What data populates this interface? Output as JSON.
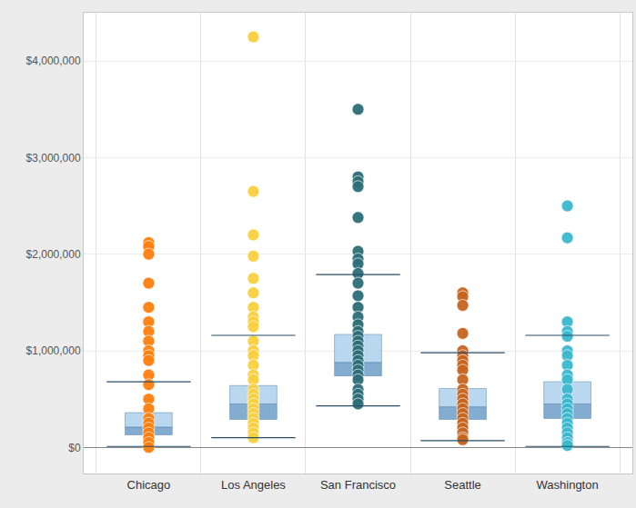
{
  "chart_data": {
    "type": "box",
    "categories": [
      "Chicago",
      "Los Angeles",
      "San Francisco",
      "Seattle",
      "Washington"
    ],
    "colors": [
      "#ff7f0e",
      "#f9d03c",
      "#2d6e78",
      "#c8641e",
      "#3cb8cf"
    ],
    "points": [
      [
        2120000,
        2080000,
        2000000,
        1700000,
        1450000,
        1300000,
        1200000,
        1100000,
        1000000,
        950000,
        900000,
        750000,
        650000,
        500000,
        400000,
        300000,
        250000,
        200000,
        150000,
        100000,
        50000,
        0
      ],
      [
        4250000,
        2650000,
        2200000,
        1980000,
        1750000,
        1600000,
        1450000,
        1350000,
        1300000,
        1250000,
        1100000,
        1000000,
        950000,
        850000,
        750000,
        700000,
        600000,
        550000,
        500000,
        450000,
        400000,
        350000,
        300000,
        250000,
        200000,
        150000,
        100000
      ],
      [
        3500000,
        2800000,
        2750000,
        2700000,
        2380000,
        2030000,
        1950000,
        1900000,
        1800000,
        1700000,
        1570000,
        1450000,
        1350000,
        1270000,
        1200000,
        1150000,
        1100000,
        1050000,
        1000000,
        950000,
        900000,
        850000,
        800000,
        750000,
        700000,
        600000,
        550000,
        500000,
        450000
      ],
      [
        1600000,
        1560000,
        1470000,
        1180000,
        1000000,
        950000,
        900000,
        850000,
        800000,
        700000,
        600000,
        550000,
        500000,
        450000,
        400000,
        350000,
        300000,
        250000,
        200000,
        150000,
        100000,
        80000
      ],
      [
        2500000,
        2170000,
        1300000,
        1200000,
        1150000,
        1000000,
        950000,
        850000,
        750000,
        700000,
        600000,
        500000,
        450000,
        400000,
        350000,
        300000,
        250000,
        200000,
        150000,
        100000,
        50000,
        20000
      ]
    ],
    "q1": [
      130000,
      290000,
      740000,
      290000,
      300000
    ],
    "median": [
      210000,
      450000,
      880000,
      420000,
      450000
    ],
    "q3": [
      360000,
      640000,
      1170000,
      610000,
      680000
    ],
    "whisker_low": [
      10000,
      100000,
      430000,
      70000,
      10000
    ],
    "whisker_high": [
      680000,
      1160000,
      1790000,
      980000,
      1160000
    ],
    "ylim": [
      -270000,
      4500000
    ],
    "yticks": [
      {
        "value": 0,
        "label": "$0"
      },
      {
        "value": 1000000,
        "label": "$1,000,000"
      },
      {
        "value": 2000000,
        "label": "$2,000,000"
      },
      {
        "value": 3000000,
        "label": "$3,000,000"
      },
      {
        "value": 4000000,
        "label": "$4,000,000"
      }
    ],
    "grid": true
  }
}
